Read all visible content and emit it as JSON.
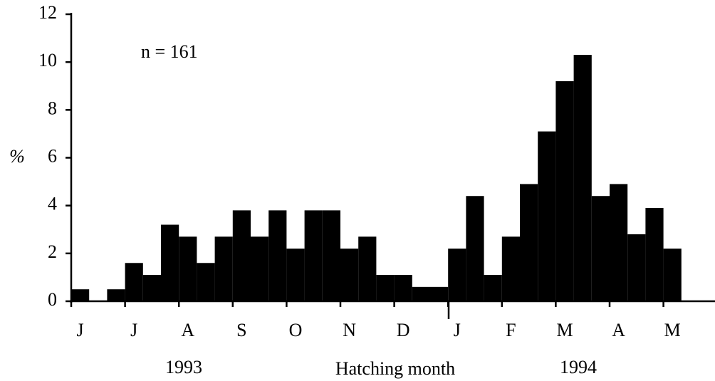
{
  "chart_data": {
    "type": "bar",
    "annotation": "n = 161",
    "y_label": "%",
    "x_label": "Hatching month",
    "year_labels": [
      "1993",
      "1994"
    ],
    "categories": [
      "J",
      null,
      null,
      "J",
      null,
      null,
      "A",
      null,
      null,
      "S",
      null,
      null,
      "O",
      null,
      null,
      "N",
      null,
      null,
      "D",
      null,
      null,
      "J",
      null,
      null,
      "F",
      null,
      null,
      "M",
      null,
      null,
      "A",
      null,
      null,
      "M"
    ],
    "values": [
      0.5,
      0,
      0.5,
      1.6,
      1.1,
      3.2,
      2.7,
      1.6,
      2.7,
      3.8,
      2.7,
      3.8,
      2.2,
      3.8,
      3.8,
      2.2,
      2.7,
      1.1,
      1.1,
      0.6,
      0.6,
      2.2,
      4.4,
      1.1,
      2.7,
      4.9,
      7.1,
      9.2,
      10.3,
      4.4,
      4.9,
      2.8,
      3.9,
      2.2
    ],
    "color": "#000000",
    "ylim": [
      0,
      12
    ],
    "yticks": [
      0,
      2,
      4,
      6,
      8,
      10,
      12
    ]
  }
}
